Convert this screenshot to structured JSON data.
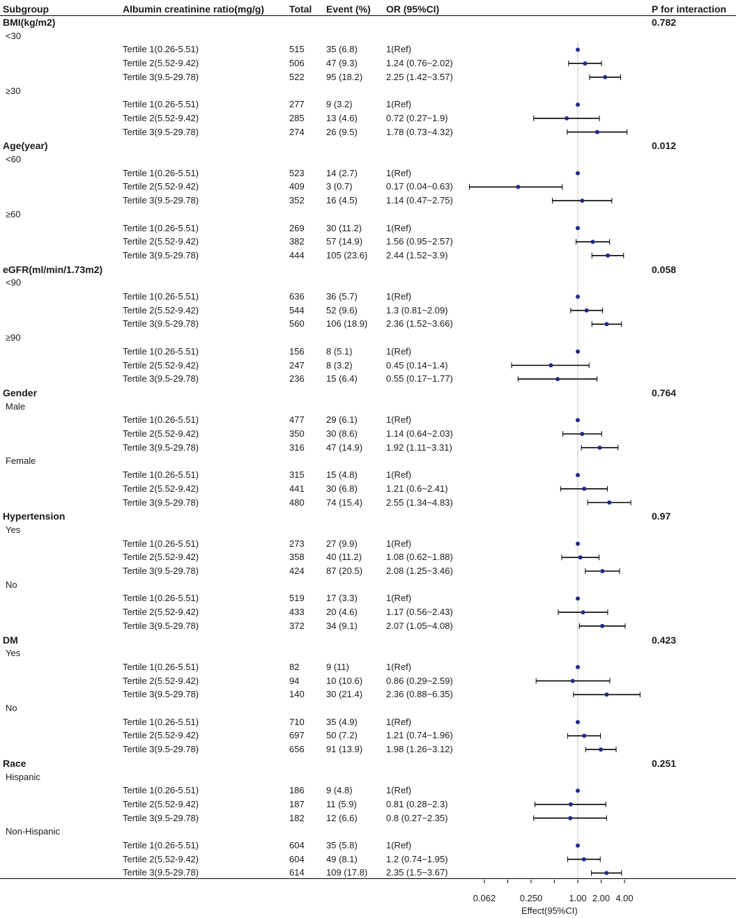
{
  "header": {
    "subgroup": "Subgroup",
    "exposure": "Albumin creatinine ratio(mg/g)",
    "total": "Total",
    "event": "Event (%)",
    "or": "OR (95%CI)",
    "p": "P for interaction"
  },
  "chart_data": {
    "type": "forest",
    "xlabel": "Effect(95%CI)",
    "xscale": "log2",
    "xlim": [
      0.04,
      7.0
    ],
    "reference_line": 1.0,
    "ticks": [
      {
        "value": 0.0625,
        "label": "0.062"
      },
      {
        "value": 0.125,
        "label": ""
      },
      {
        "value": 0.25,
        "label": "0.250"
      },
      {
        "value": 0.5,
        "label": ""
      },
      {
        "value": 1.0,
        "label": "1.00"
      },
      {
        "value": 2.0,
        "label": "2.00"
      },
      {
        "value": 4.0,
        "label": "4.00"
      }
    ],
    "groups": [
      {
        "name": "BMI(kg/m2)",
        "p": "0.782",
        "subgroups": [
          {
            "name": "<30",
            "rows": [
              {
                "label": "Tertile 1(0.26-5.51)",
                "total": "515",
                "event": "35 (6.8)",
                "or_text": "1(Ref)",
                "or": 1.0,
                "lo": 1.0,
                "hi": 1.0
              },
              {
                "label": "Tertile 2(5.52-9.42)",
                "total": "506",
                "event": "47 (9.3)",
                "or_text": "1.24 (0.76~2.02)",
                "or": 1.24,
                "lo": 0.76,
                "hi": 2.02
              },
              {
                "label": "Tertile 3(9.5-29.78)",
                "total": "522",
                "event": "95 (18.2)",
                "or_text": "2.25 (1.42~3.57)",
                "or": 2.25,
                "lo": 1.42,
                "hi": 3.57
              }
            ]
          },
          {
            "name": "≥30",
            "rows": [
              {
                "label": "Tertile 1(0.26-5.51)",
                "total": "277",
                "event": "9 (3.2)",
                "or_text": "1(Ref)",
                "or": 1.0,
                "lo": 1.0,
                "hi": 1.0
              },
              {
                "label": "Tertile 2(5.52-9.42)",
                "total": "285",
                "event": "13 (4.6)",
                "or_text": "0.72 (0.27~1.9)",
                "or": 0.72,
                "lo": 0.27,
                "hi": 1.9
              },
              {
                "label": "Tertile 3(9.5-29.78)",
                "total": "274",
                "event": "26 (9.5)",
                "or_text": "1.78 (0.73~4.32)",
                "or": 1.78,
                "lo": 0.73,
                "hi": 4.32
              }
            ]
          }
        ]
      },
      {
        "name": "Age(year)",
        "p": "0.012",
        "subgroups": [
          {
            "name": "<60",
            "rows": [
              {
                "label": "Tertile 1(0.26-5.51)",
                "total": "523",
                "event": "14 (2.7)",
                "or_text": "1(Ref)",
                "or": 1.0,
                "lo": 1.0,
                "hi": 1.0
              },
              {
                "label": "Tertile 2(5.52-9.42)",
                "total": "409",
                "event": "3 (0.7)",
                "or_text": "0.17 (0.04~0.63)",
                "or": 0.17,
                "lo": 0.04,
                "hi": 0.63
              },
              {
                "label": "Tertile 3(9.5-29.78)",
                "total": "352",
                "event": "16 (4.5)",
                "or_text": "1.14 (0.47~2.75)",
                "or": 1.14,
                "lo": 0.47,
                "hi": 2.75
              }
            ]
          },
          {
            "name": "≥60",
            "rows": [
              {
                "label": "Tertile 1(0.26-5.51)",
                "total": "269",
                "event": "30 (11.2)",
                "or_text": "1(Ref)",
                "or": 1.0,
                "lo": 1.0,
                "hi": 1.0
              },
              {
                "label": "Tertile 2(5.52-9.42)",
                "total": "382",
                "event": "57 (14.9)",
                "or_text": "1.56 (0.95~2.57)",
                "or": 1.56,
                "lo": 0.95,
                "hi": 2.57
              },
              {
                "label": "Tertile 3(9.5-29.78)",
                "total": "444",
                "event": "105 (23.6)",
                "or_text": "2.44 (1.52~3.9)",
                "or": 2.44,
                "lo": 1.52,
                "hi": 3.9
              }
            ]
          }
        ]
      },
      {
        "name": "eGFR(ml/min/1.73m2)",
        "p": "0.058",
        "subgroups": [
          {
            "name": "<90",
            "rows": [
              {
                "label": "Tertile 1(0.26-5.51)",
                "total": "636",
                "event": "36 (5.7)",
                "or_text": "1(Ref)",
                "or": 1.0,
                "lo": 1.0,
                "hi": 1.0
              },
              {
                "label": "Tertile 2(5.52-9.42)",
                "total": "544",
                "event": "52 (9.6)",
                "or_text": "1.3 (0.81~2.09)",
                "or": 1.3,
                "lo": 0.81,
                "hi": 2.09
              },
              {
                "label": "Tertile 3(9.5-29.78)",
                "total": "560",
                "event": "106 (18.9)",
                "or_text": "2.36 (1.52~3.66)",
                "or": 2.36,
                "lo": 1.52,
                "hi": 3.66
              }
            ]
          },
          {
            "name": "≥90",
            "rows": [
              {
                "label": "Tertile 1(0.26-5.51)",
                "total": "156",
                "event": "8 (5.1)",
                "or_text": "1(Ref)",
                "or": 1.0,
                "lo": 1.0,
                "hi": 1.0
              },
              {
                "label": "Tertile 2(5.52-9.42)",
                "total": "247",
                "event": "8 (3.2)",
                "or_text": "0.45 (0.14~1.4)",
                "or": 0.45,
                "lo": 0.14,
                "hi": 1.4
              },
              {
                "label": "Tertile 3(9.5-29.78)",
                "total": "236",
                "event": "15 (6.4)",
                "or_text": "0.55 (0.17~1.77)",
                "or": 0.55,
                "lo": 0.17,
                "hi": 1.77
              }
            ]
          }
        ]
      },
      {
        "name": "Gender",
        "p": "0.764",
        "subgroups": [
          {
            "name": "Male",
            "rows": [
              {
                "label": "Tertile 1(0.26-5.51)",
                "total": "477",
                "event": "29 (6.1)",
                "or_text": "1(Ref)",
                "or": 1.0,
                "lo": 1.0,
                "hi": 1.0
              },
              {
                "label": "Tertile 2(5.52-9.42)",
                "total": "350",
                "event": "30 (8.6)",
                "or_text": "1.14 (0.64~2.03)",
                "or": 1.14,
                "lo": 0.64,
                "hi": 2.03
              },
              {
                "label": "Tertile 3(9.5-29.78)",
                "total": "316",
                "event": "47 (14.9)",
                "or_text": "1.92 (1.11~3.31)",
                "or": 1.92,
                "lo": 1.11,
                "hi": 3.31
              }
            ]
          },
          {
            "name": "Female",
            "rows": [
              {
                "label": "Tertile 1(0.26-5.51)",
                "total": "315",
                "event": "15 (4.8)",
                "or_text": "1(Ref)",
                "or": 1.0,
                "lo": 1.0,
                "hi": 1.0
              },
              {
                "label": "Tertile 2(5.52-9.42)",
                "total": "441",
                "event": "30 (6.8)",
                "or_text": "1.21 (0.6~2.41)",
                "or": 1.21,
                "lo": 0.6,
                "hi": 2.41
              },
              {
                "label": "Tertile 3(9.5-29.78)",
                "total": "480",
                "event": "74 (15.4)",
                "or_text": "2.55 (1.34~4.83)",
                "or": 2.55,
                "lo": 1.34,
                "hi": 4.83
              }
            ]
          }
        ]
      },
      {
        "name": "Hypertension",
        "p": "0.97",
        "subgroups": [
          {
            "name": "Yes",
            "rows": [
              {
                "label": "Tertile 1(0.26-5.51)",
                "total": "273",
                "event": "27 (9.9)",
                "or_text": "1(Ref)",
                "or": 1.0,
                "lo": 1.0,
                "hi": 1.0
              },
              {
                "label": "Tertile 2(5.52-9.42)",
                "total": "358",
                "event": "40 (11.2)",
                "or_text": "1.08 (0.62~1.88)",
                "or": 1.08,
                "lo": 0.62,
                "hi": 1.88
              },
              {
                "label": "Tertile 3(9.5-29.78)",
                "total": "424",
                "event": "87 (20.5)",
                "or_text": "2.08 (1.25~3.46)",
                "or": 2.08,
                "lo": 1.25,
                "hi": 3.46
              }
            ]
          },
          {
            "name": "No",
            "rows": [
              {
                "label": "Tertile 1(0.26-5.51)",
                "total": "519",
                "event": "17 (3.3)",
                "or_text": "1(Ref)",
                "or": 1.0,
                "lo": 1.0,
                "hi": 1.0
              },
              {
                "label": "Tertile 2(5.52-9.42)",
                "total": "433",
                "event": "20 (4.6)",
                "or_text": "1.17 (0.56~2.43)",
                "or": 1.17,
                "lo": 0.56,
                "hi": 2.43
              },
              {
                "label": "Tertile 3(9.5-29.78)",
                "total": "372",
                "event": "34 (9.1)",
                "or_text": "2.07 (1.05~4.08)",
                "or": 2.07,
                "lo": 1.05,
                "hi": 4.08
              }
            ]
          }
        ]
      },
      {
        "name": "DM",
        "p": "0.423",
        "subgroups": [
          {
            "name": "Yes",
            "rows": [
              {
                "label": "Tertile 1(0.26-5.51)",
                "total": "82",
                "event": "9 (11)",
                "or_text": "1(Ref)",
                "or": 1.0,
                "lo": 1.0,
                "hi": 1.0
              },
              {
                "label": "Tertile 2(5.52-9.42)",
                "total": "94",
                "event": "10 (10.6)",
                "or_text": "0.86 (0.29~2.59)",
                "or": 0.86,
                "lo": 0.29,
                "hi": 2.59
              },
              {
                "label": "Tertile 3(9.5-29.78)",
                "total": "140",
                "event": "30 (21.4)",
                "or_text": "2.36 (0.88~6.35)",
                "or": 2.36,
                "lo": 0.88,
                "hi": 6.35
              }
            ]
          },
          {
            "name": "No",
            "rows": [
              {
                "label": "Tertile 1(0.26-5.51)",
                "total": "710",
                "event": "35 (4.9)",
                "or_text": "1(Ref)",
                "or": 1.0,
                "lo": 1.0,
                "hi": 1.0
              },
              {
                "label": "Tertile 2(5.52-9.42)",
                "total": "697",
                "event": "50 (7.2)",
                "or_text": "1.21 (0.74~1.96)",
                "or": 1.21,
                "lo": 0.74,
                "hi": 1.96
              },
              {
                "label": "Tertile 3(9.5-29.78)",
                "total": "656",
                "event": "91 (13.9)",
                "or_text": "1.98 (1.26~3.12)",
                "or": 1.98,
                "lo": 1.26,
                "hi": 3.12
              }
            ]
          }
        ]
      },
      {
        "name": "Race",
        "p": "0.251",
        "subgroups": [
          {
            "name": "Hispanic",
            "rows": [
              {
                "label": "Tertile 1(0.26-5.51)",
                "total": "186",
                "event": "9 (4.8)",
                "or_text": "1(Ref)",
                "or": 1.0,
                "lo": 1.0,
                "hi": 1.0
              },
              {
                "label": "Tertile 2(5.52-9.42)",
                "total": "187",
                "event": "11 (5.9)",
                "or_text": "0.81 (0.28~2.3)",
                "or": 0.81,
                "lo": 0.28,
                "hi": 2.3
              },
              {
                "label": "Tertile 3(9.5-29.78)",
                "total": "182",
                "event": "12 (6.6)",
                "or_text": "0.8 (0.27~2.35)",
                "or": 0.8,
                "lo": 0.27,
                "hi": 2.35
              }
            ]
          },
          {
            "name": "Non-Hispanic",
            "rows": [
              {
                "label": "Tertile 1(0.26-5.51)",
                "total": "604",
                "event": "35 (5.8)",
                "or_text": "1(Ref)",
                "or": 1.0,
                "lo": 1.0,
                "hi": 1.0
              },
              {
                "label": "Tertile 2(5.52-9.42)",
                "total": "604",
                "event": "49 (8.1)",
                "or_text": "1.2 (0.74~1.95)",
                "or": 1.2,
                "lo": 0.74,
                "hi": 1.95
              },
              {
                "label": "Tertile 3(9.5-29.78)",
                "total": "614",
                "event": "109 (17.8)",
                "or_text": "2.35 (1.5~3.67)",
                "or": 2.35,
                "lo": 1.5,
                "hi": 3.67
              }
            ]
          }
        ]
      }
    ]
  },
  "colors": {
    "point": "#1f2a8a",
    "ci": "#000000",
    "ref_line": "#c8c8c8",
    "text": "#1a1a1a"
  }
}
